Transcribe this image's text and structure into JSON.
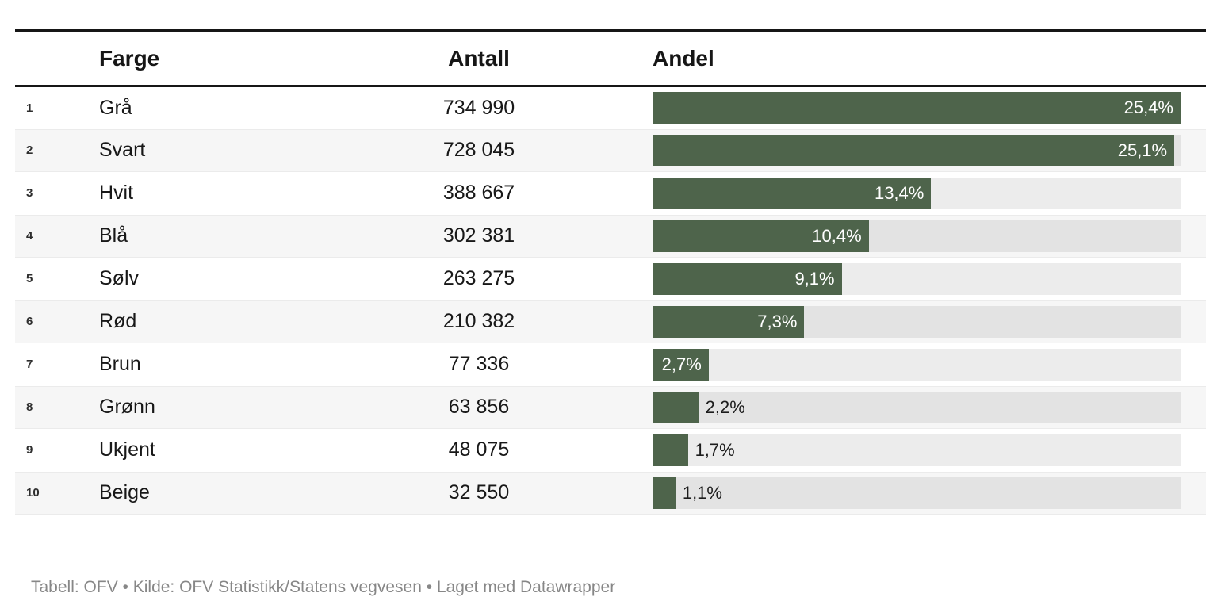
{
  "table": {
    "columns": {
      "rank": "",
      "farge": "Farge",
      "antall": "Antall",
      "andel": "Andel"
    },
    "rows": [
      {
        "rank": "1",
        "farge": "Grå",
        "antall": "734 990",
        "andel_label": "25,4%",
        "share_pct": 25.4,
        "label_inside": true
      },
      {
        "rank": "2",
        "farge": "Svart",
        "antall": "728 045",
        "andel_label": "25,1%",
        "share_pct": 25.1,
        "label_inside": true
      },
      {
        "rank": "3",
        "farge": "Hvit",
        "antall": "388 667",
        "andel_label": "13,4%",
        "share_pct": 13.4,
        "label_inside": true
      },
      {
        "rank": "4",
        "farge": "Blå",
        "antall": "302 381",
        "andel_label": "10,4%",
        "share_pct": 10.4,
        "label_inside": true
      },
      {
        "rank": "5",
        "farge": "Sølv",
        "antall": "263 275",
        "andel_label": "9,1%",
        "share_pct": 9.1,
        "label_inside": true
      },
      {
        "rank": "6",
        "farge": "Rød",
        "antall": "210 382",
        "andel_label": "7,3%",
        "share_pct": 7.3,
        "label_inside": true
      },
      {
        "rank": "7",
        "farge": "Brun",
        "antall": "77 336",
        "andel_label": "2,7%",
        "share_pct": 2.7,
        "label_inside": true
      },
      {
        "rank": "8",
        "farge": "Grønn",
        "antall": "63 856",
        "andel_label": "2,2%",
        "share_pct": 2.2,
        "label_inside": false
      },
      {
        "rank": "9",
        "farge": "Ukjent",
        "antall": "48 075",
        "andel_label": "1,7%",
        "share_pct": 1.7,
        "label_inside": false
      },
      {
        "rank": "10",
        "farge": "Beige",
        "antall": "32 550",
        "andel_label": "1,1%",
        "share_pct": 1.1,
        "label_inside": false
      }
    ],
    "bar_scale_max_pct": 25.4
  },
  "footer": {
    "text": "Tabell: OFV • Kilde: OFV Statistikk/Statens vegvesen • Laget med Datawrapper"
  },
  "colors": {
    "bar": "#4e644b",
    "track": "rgba(0,0,0,0.075)",
    "stripe": "#f6f6f6",
    "rule": "#161616",
    "label_inside": "#ffffff",
    "label_outside": "#1c1c1c",
    "footer_text": "#878787"
  },
  "chart_data": {
    "type": "table",
    "title": "",
    "columns": [
      "",
      "Farge",
      "Antall",
      "Andel"
    ],
    "rows": [
      [
        "1",
        "Grå",
        "734 990",
        "25,4%"
      ],
      [
        "2",
        "Svart",
        "728 045",
        "25,1%"
      ],
      [
        "3",
        "Hvit",
        "388 667",
        "13,4%"
      ],
      [
        "4",
        "Blå",
        "302 381",
        "10,4%"
      ],
      [
        "5",
        "Sølv",
        "263 275",
        "9,1%"
      ],
      [
        "6",
        "Rød",
        "210 382",
        "7,3%"
      ],
      [
        "7",
        "Brun",
        "77 336",
        "2,7%"
      ],
      [
        "8",
        "Grønn",
        "63 856",
        "2,2%"
      ],
      [
        "9",
        "Ukjent",
        "48 075",
        "1,7%"
      ],
      [
        "10",
        "Beige",
        "32 550",
        "1,1%"
      ]
    ],
    "embedded_bar": {
      "type": "bar",
      "categories": [
        "Grå",
        "Svart",
        "Hvit",
        "Blå",
        "Sølv",
        "Rød",
        "Brun",
        "Grønn",
        "Ukjent",
        "Beige"
      ],
      "counts": [
        734990,
        728045,
        388667,
        302381,
        263275,
        210382,
        77336,
        63856,
        48075,
        32550
      ],
      "values_pct": [
        25.4,
        25.1,
        13.4,
        10.4,
        9.1,
        7.3,
        2.7,
        2.2,
        1.7,
        1.1
      ],
      "scale_max_pct": 25.4,
      "orientation": "horizontal"
    },
    "footer": "Tabell: OFV • Kilde: OFV Statistikk/Statens vegvesen • Laget med Datawrapper"
  }
}
